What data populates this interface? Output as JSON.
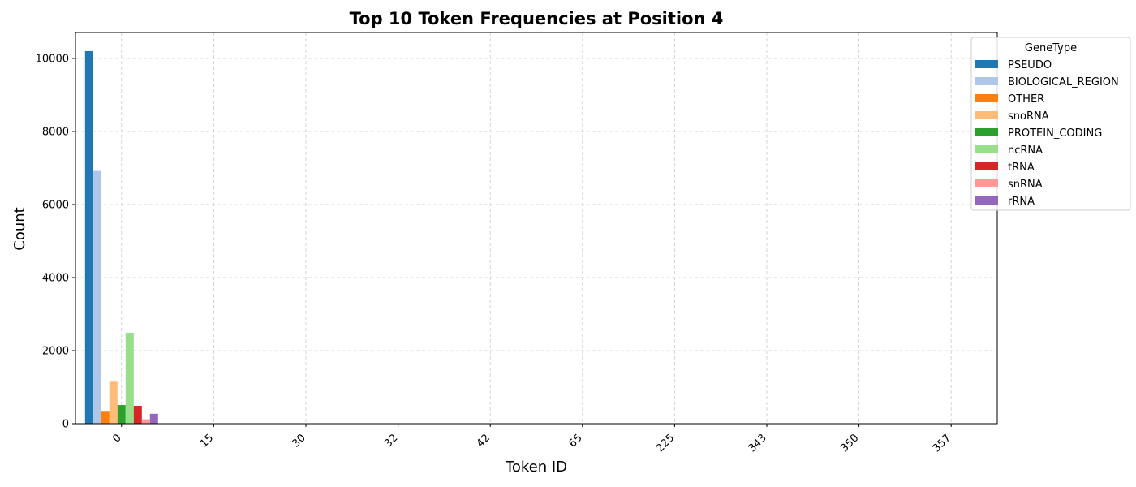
{
  "chart_data": {
    "type": "bar",
    "title": "Top 10 Token Frequencies at Position 4",
    "xlabel": "Token ID",
    "ylabel": "Count",
    "categories": [
      "0",
      "15",
      "30",
      "32",
      "42",
      "65",
      "225",
      "343",
      "350",
      "357"
    ],
    "ylim": [
      0,
      10710
    ],
    "yticks": [
      0,
      2000,
      4000,
      6000,
      8000,
      10000
    ],
    "grid": true,
    "legend": {
      "title": "GeneType",
      "placement": "top-right"
    },
    "series": [
      {
        "name": "PSEUDO",
        "color": "#1f77b4",
        "values": [
          10200,
          0,
          0,
          0,
          0,
          0,
          0,
          0,
          0,
          0
        ]
      },
      {
        "name": "BIOLOGICAL_REGION",
        "color": "#aec7e8",
        "values": [
          6920,
          0,
          0,
          0,
          0,
          0,
          0,
          0,
          0,
          0
        ]
      },
      {
        "name": "OTHER",
        "color": "#ff7f0e",
        "values": [
          350,
          0,
          0,
          0,
          0,
          0,
          0,
          0,
          0,
          0
        ]
      },
      {
        "name": "snoRNA",
        "color": "#ffbb78",
        "values": [
          1150,
          0,
          0,
          0,
          0,
          0,
          0,
          0,
          0,
          0
        ]
      },
      {
        "name": "PROTEIN_CODING",
        "color": "#2ca02c",
        "values": [
          510,
          0,
          0,
          0,
          0,
          0,
          0,
          0,
          0,
          0
        ]
      },
      {
        "name": "ncRNA",
        "color": "#98df8a",
        "values": [
          2490,
          0,
          0,
          0,
          0,
          0,
          0,
          0,
          0,
          0
        ]
      },
      {
        "name": "tRNA",
        "color": "#d62728",
        "values": [
          490,
          0,
          0,
          0,
          0,
          0,
          0,
          0,
          0,
          0
        ]
      },
      {
        "name": "snRNA",
        "color": "#ff9896",
        "values": [
          120,
          0,
          0,
          0,
          0,
          0,
          0,
          0,
          0,
          0
        ]
      },
      {
        "name": "rRNA",
        "color": "#9467bd",
        "values": [
          270,
          0,
          0,
          0,
          0,
          0,
          0,
          0,
          0,
          0
        ]
      }
    ]
  }
}
